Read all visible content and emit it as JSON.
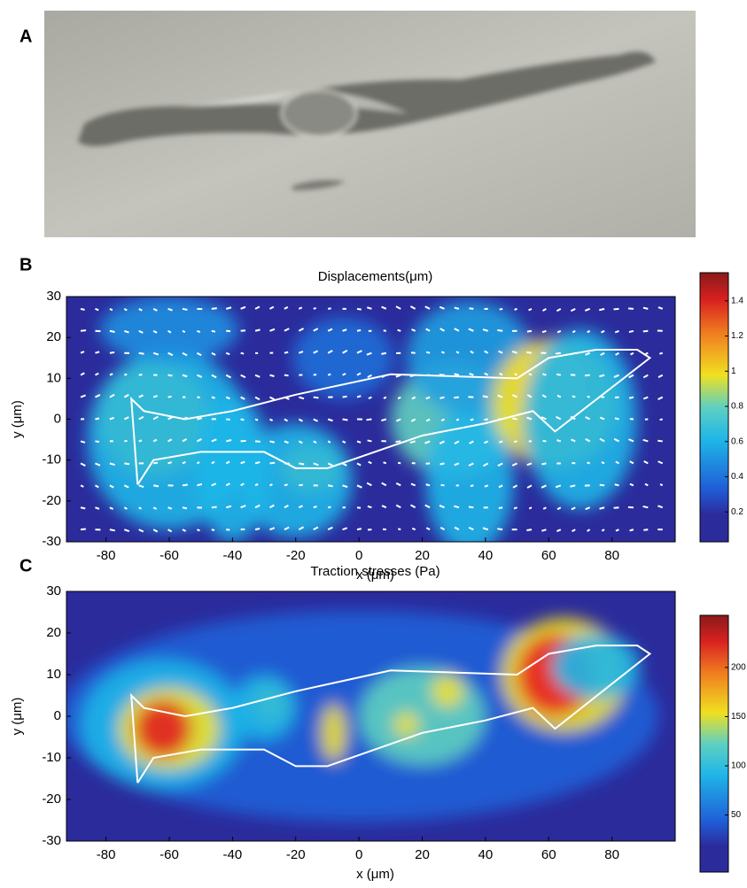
{
  "panel_a": {
    "label": "A"
  },
  "chart_data": [
    {
      "type": "heatmap",
      "panel_label": "B",
      "title": "Displacements(μm)",
      "xlabel": "x (μm)",
      "ylabel": "y (μm)",
      "xlim": [
        -92.5,
        100
      ],
      "ylim": [
        -30,
        30
      ],
      "xticks": [
        -80,
        -60,
        -40,
        -20,
        0,
        20,
        40,
        60,
        80
      ],
      "yticks": [
        -30,
        -20,
        -10,
        0,
        10,
        20,
        30
      ],
      "clim": [
        0.03,
        1.56
      ],
      "colorbar_ticks": [
        0.2,
        0.4,
        0.6,
        0.8,
        1,
        1.2,
        1.4
      ],
      "vectors": true
    },
    {
      "type": "heatmap",
      "panel_label": "C",
      "title": "Traction stresses (Pa)",
      "xlabel": "x (μm)",
      "ylabel": "y (μm)",
      "xlim": [
        -92.5,
        100
      ],
      "ylim": [
        -30,
        30
      ],
      "xticks": [
        -80,
        -60,
        -40,
        -20,
        0,
        20,
        40,
        60,
        80
      ],
      "yticks": [
        -30,
        -20,
        -10,
        0,
        10,
        20,
        30
      ],
      "clim": [
        -8,
        253
      ],
      "colorbar_ticks": [
        50,
        100,
        150,
        200
      ],
      "vectors": false
    }
  ]
}
